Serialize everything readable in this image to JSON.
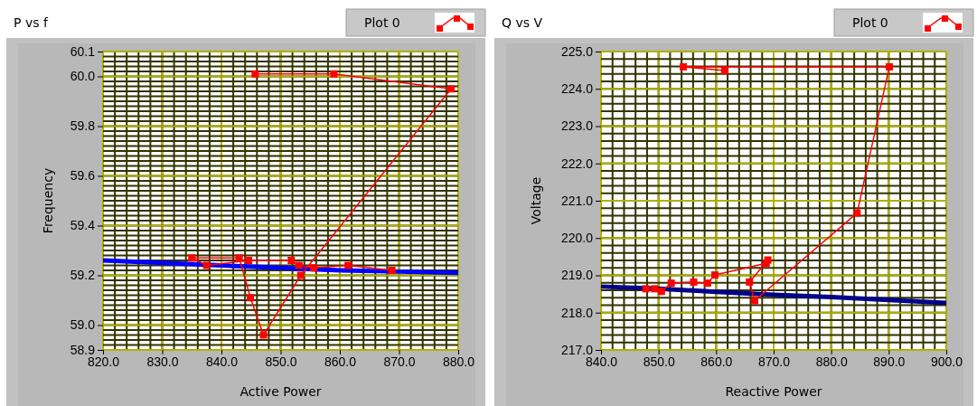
{
  "chart_data": [
    {
      "type": "line",
      "title": "P vs f",
      "xlabel": "Active Power",
      "ylabel": "Frequency",
      "xlim": [
        820,
        880
      ],
      "ylim": [
        58.9,
        60.1
      ],
      "xticks": [
        {
          "value": 820,
          "label": "820.0"
        },
        {
          "value": 830,
          "label": "830.0"
        },
        {
          "value": 840,
          "label": "840.0"
        },
        {
          "value": 850,
          "label": "850.0"
        },
        {
          "value": 860,
          "label": "860.0"
        },
        {
          "value": 870,
          "label": "870.0"
        },
        {
          "value": 880,
          "label": "880.0"
        }
      ],
      "yticks": [
        58.9,
        {
          "value": 59,
          "label": "59.0"
        },
        59.2,
        59.4,
        59.6,
        59.8,
        {
          "value": 60,
          "label": "60.0"
        },
        60.1
      ],
      "grid": true,
      "legend": "top right",
      "marker": "square",
      "line_style": "solid",
      "series": [
        {
          "name": "Plot 0",
          "color": "#ff0000",
          "x": [
            845.7,
            859.0,
            878.8,
            853.4,
            847.1,
            844.9,
            843.0,
            835.0,
            837.5,
            844.6,
            851.8,
            853.1,
            855.6,
            861.4,
            868.8
          ],
          "values": [
            60.01,
            60.01,
            59.95,
            59.2,
            58.96,
            59.11,
            59.27,
            59.27,
            59.24,
            59.26,
            59.26,
            59.24,
            59.23,
            59.24,
            59.22
          ]
        },
        {
          "color": "#0000ff",
          "marker": "none",
          "x": [
            820,
            830,
            840,
            850,
            860,
            870,
            880
          ],
          "values": [
            59.26,
            59.25,
            59.24,
            59.23,
            59.22,
            59.215,
            59.21
          ]
        }
      ]
    },
    {
      "type": "line",
      "title": "Q vs V",
      "xlabel": "Reactive Power",
      "ylabel": "Voltage",
      "xlim": [
        840,
        900
      ],
      "ylim": [
        217,
        225
      ],
      "xticks": [
        {
          "value": 840,
          "label": "840.0"
        },
        {
          "value": 850,
          "label": "850.0"
        },
        {
          "value": 860,
          "label": "860.0"
        },
        {
          "value": 870,
          "label": "870.0"
        },
        {
          "value": 880,
          "label": "880.0"
        },
        {
          "value": 890,
          "label": "890.0"
        },
        {
          "value": 900,
          "label": "900.0"
        }
      ],
      "yticks": [
        {
          "value": 217,
          "label": "217.0"
        },
        {
          "value": 218,
          "label": "218.0"
        },
        {
          "value": 219,
          "label": "219.0"
        },
        {
          "value": 220,
          "label": "220.0"
        },
        {
          "value": 221,
          "label": "221.0"
        },
        {
          "value": 222,
          "label": "222.0"
        },
        {
          "value": 223,
          "label": "223.0"
        },
        {
          "value": 224,
          "label": "224.0"
        },
        {
          "value": 225,
          "label": "225.0"
        }
      ],
      "grid": true,
      "legend": "top right",
      "marker": "square",
      "line_style": "solid",
      "series": [
        {
          "name": "Plot 0",
          "color": "#ff0000",
          "x": [
            861.5,
            854.3,
            890.1,
            884.5,
            866.7,
            865.8,
            869.0,
            868.7,
            859.8,
            858.5,
            856.1,
            852.2,
            850.5,
            849.3,
            847.8
          ],
          "values": [
            224.49,
            224.59,
            224.59,
            220.67,
            218.32,
            218.82,
            219.41,
            219.32,
            219.01,
            218.79,
            218.82,
            218.79,
            218.57,
            218.64,
            218.64
          ]
        },
        {
          "color": "#00008b",
          "marker": "none",
          "x": [
            840,
            850,
            860,
            870,
            880,
            890,
            900
          ],
          "values": [
            218.7,
            218.64,
            218.56,
            218.48,
            218.42,
            218.34,
            218.26
          ]
        }
      ]
    }
  ]
}
